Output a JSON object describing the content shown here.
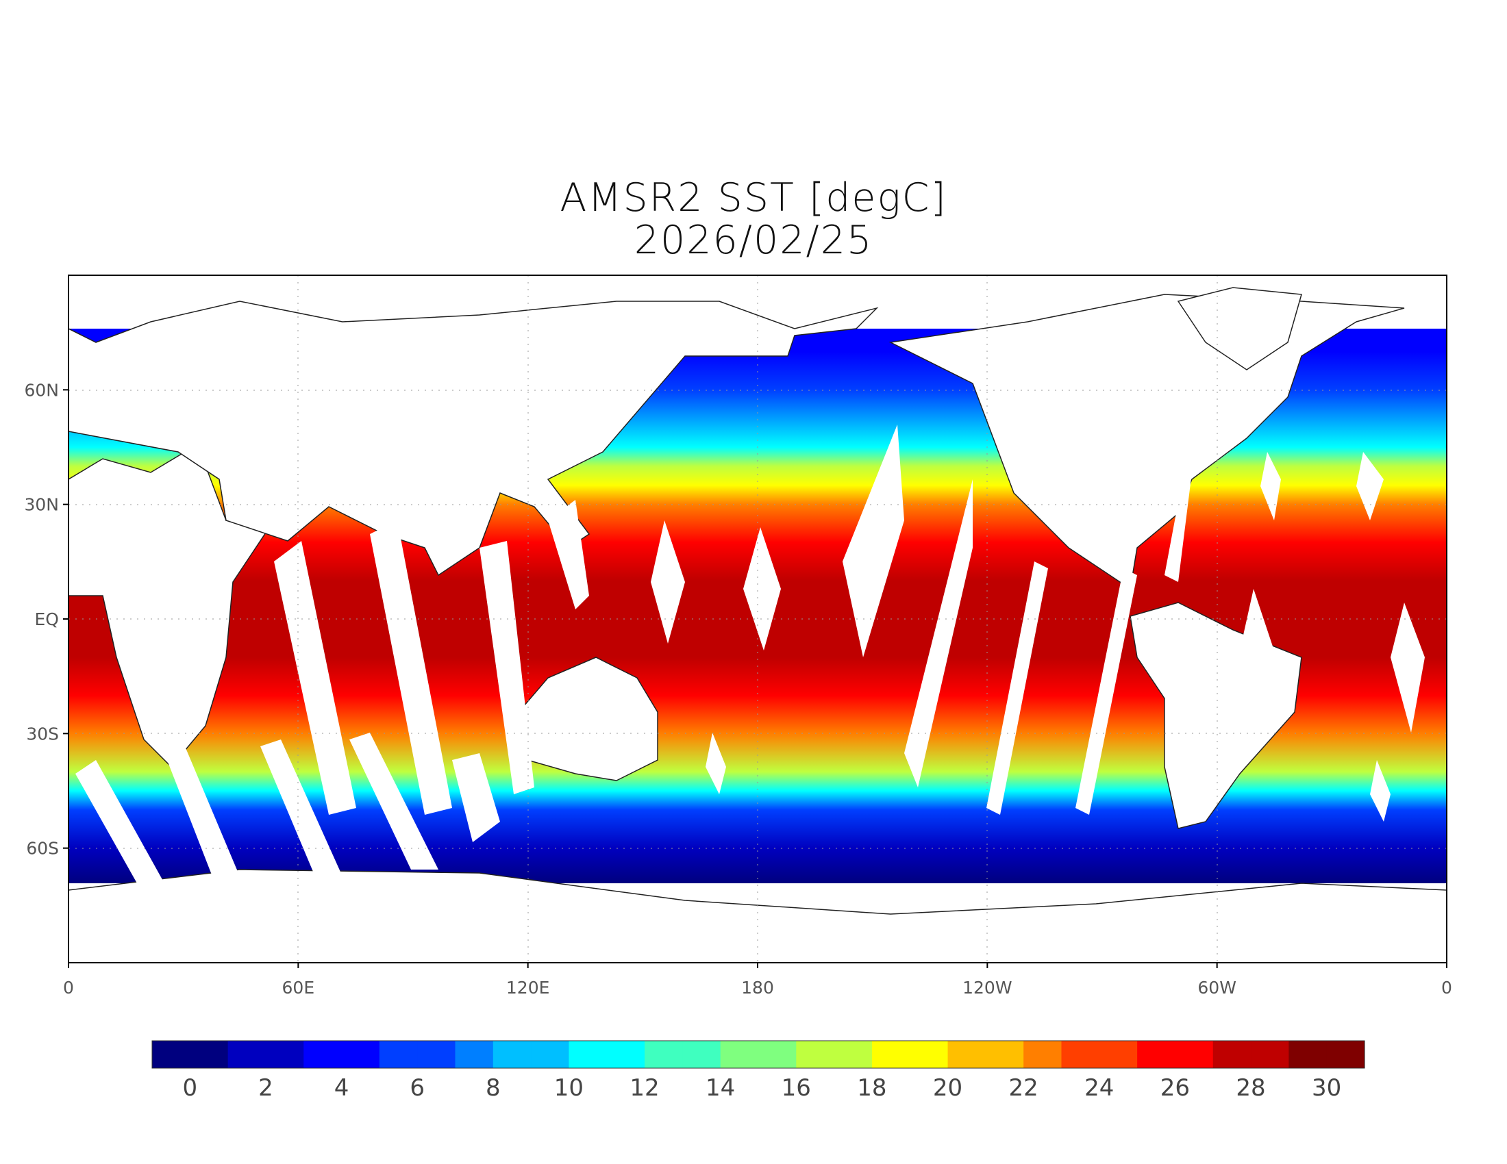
{
  "title": "AMSR2 SST [degC]",
  "date": "2026/02/25",
  "x_ticks": [
    "0",
    "60E",
    "120E",
    "180",
    "120W",
    "60W",
    "0"
  ],
  "y_ticks": [
    "60N",
    "30N",
    "EQ",
    "30S",
    "60S"
  ],
  "colorbar": {
    "labels": [
      "0",
      "2",
      "4",
      "6",
      "8",
      "10",
      "12",
      "14",
      "16",
      "18",
      "20",
      "22",
      "24",
      "26",
      "28",
      "30"
    ],
    "min": -1,
    "max": 31,
    "colors": [
      "#00007f",
      "#0000bf",
      "#0000ff",
      "#003fff",
      "#007fff",
      "#00bfff",
      "#00ffff",
      "#3fffbf",
      "#7fff7f",
      "#bfff3f",
      "#ffff00",
      "#ffbf00",
      "#ff7f00",
      "#ff3f00",
      "#ff0000",
      "#bf0000",
      "#7f0000"
    ]
  },
  "chart_data": {
    "type": "heatmap",
    "variable": "SST",
    "unit": "degC",
    "x_range": [
      0,
      360
    ],
    "y_range": [
      -90,
      90
    ],
    "lat_bands": [
      {
        "lat": 70,
        "sst": 4
      },
      {
        "lat": 60,
        "sst": 6
      },
      {
        "lat": 50,
        "sst": 9
      },
      {
        "lat": 45,
        "sst": 12
      },
      {
        "lat": 40,
        "sst": 16
      },
      {
        "lat": 35,
        "sst": 19
      },
      {
        "lat": 30,
        "sst": 22
      },
      {
        "lat": 20,
        "sst": 26
      },
      {
        "lat": 10,
        "sst": 28
      },
      {
        "lat": 0,
        "sst": 28
      },
      {
        "lat": -10,
        "sst": 28
      },
      {
        "lat": -20,
        "sst": 26
      },
      {
        "lat": -30,
        "sst": 22
      },
      {
        "lat": -40,
        "sst": 16
      },
      {
        "lat": -45,
        "sst": 11
      },
      {
        "lat": -50,
        "sst": 6
      },
      {
        "lat": -60,
        "sst": 2
      },
      {
        "lat": -70,
        "sst": 0
      }
    ]
  }
}
